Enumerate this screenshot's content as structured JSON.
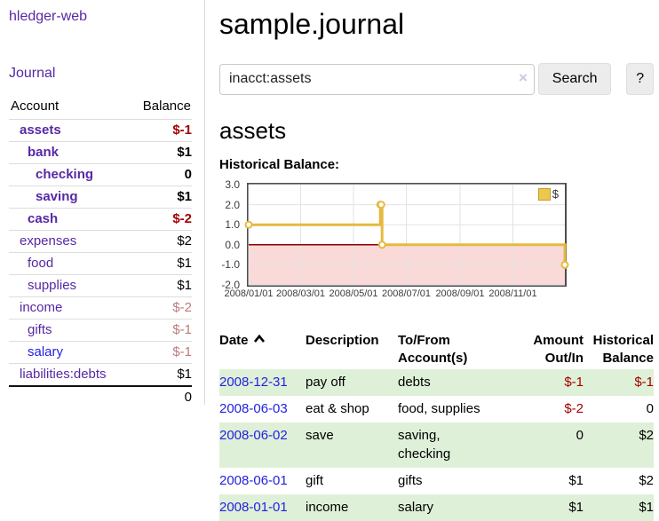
{
  "app": {
    "title": "hledger-web"
  },
  "sidebar": {
    "nav": {
      "journal_label": "Journal"
    },
    "table": {
      "account_header": "Account",
      "balance_header": "Balance",
      "total": "0"
    },
    "accounts": [
      {
        "name": "assets",
        "balance": "$-1",
        "level": 1,
        "bold": true,
        "balance_style": "negative",
        "link_style": "purple"
      },
      {
        "name": "bank",
        "balance": "$1",
        "level": 2,
        "bold": true,
        "balance_style": "normal",
        "link_style": "purple"
      },
      {
        "name": "checking",
        "balance": "0",
        "level": 3,
        "bold": true,
        "balance_style": "normal",
        "link_style": "purple"
      },
      {
        "name": "saving",
        "balance": "$1",
        "level": 3,
        "bold": true,
        "balance_style": "normal",
        "link_style": "purple"
      },
      {
        "name": "cash",
        "balance": "$-2",
        "level": 2,
        "bold": true,
        "balance_style": "negative",
        "link_style": "purple"
      },
      {
        "name": "expenses",
        "balance": "$2",
        "level": 1,
        "bold": false,
        "balance_style": "normal",
        "link_style": "purple"
      },
      {
        "name": "food",
        "balance": "$1",
        "level": 2,
        "bold": false,
        "balance_style": "normal",
        "link_style": "purple"
      },
      {
        "name": "supplies",
        "balance": "$1",
        "level": 2,
        "bold": false,
        "balance_style": "normal",
        "link_style": "purple"
      },
      {
        "name": "income",
        "balance": "$-2",
        "level": 1,
        "bold": false,
        "balance_style": "negative-faded",
        "link_style": "purple"
      },
      {
        "name": "gifts",
        "balance": "$-1",
        "level": 2,
        "bold": false,
        "balance_style": "negative-faded",
        "link_style": "purple"
      },
      {
        "name": "salary",
        "balance": "$-1",
        "level": 2,
        "bold": false,
        "balance_style": "negative-faded",
        "link_style": "blue"
      },
      {
        "name": "liabilities:debts",
        "balance": "$1",
        "level": 1,
        "bold": false,
        "balance_style": "normal",
        "link_style": "purple"
      }
    ]
  },
  "main": {
    "page_title": "sample.journal",
    "search": {
      "value": "inacct:assets",
      "clear_icon": "×",
      "button_label": "Search",
      "help_label": "?"
    },
    "account_heading": "assets",
    "chart_label": "Historical Balance:",
    "register": {
      "headers": [
        "Date",
        "Description",
        "To/From\nAccount(s)",
        "Amount\nOut/In",
        "Historical\nBalance"
      ],
      "sort": "date-ascending",
      "rows": [
        {
          "date": "2008-12-31",
          "description": "pay off",
          "accounts": "debts",
          "amount": "$-1",
          "amount_negative": true,
          "balance": "$-1",
          "balance_negative": true
        },
        {
          "date": "2008-06-03",
          "description": "eat & shop",
          "accounts": "food, supplies",
          "amount": "$-2",
          "amount_negative": true,
          "balance": "0",
          "balance_negative": false
        },
        {
          "date": "2008-06-02",
          "description": "save",
          "accounts": "saving,\nchecking",
          "amount": "0",
          "amount_negative": false,
          "balance": "$2",
          "balance_negative": false
        },
        {
          "date": "2008-06-01",
          "description": "gift",
          "accounts": "gifts",
          "amount": "$1",
          "amount_negative": false,
          "balance": "$2",
          "balance_negative": false
        },
        {
          "date": "2008-01-01",
          "description": "income",
          "accounts": "salary",
          "amount": "$1",
          "amount_negative": false,
          "balance": "$1",
          "balance_negative": false
        }
      ]
    }
  },
  "chart_data": {
    "type": "line",
    "title": "Historical Balance:",
    "style": "steps",
    "series": [
      {
        "name": "$",
        "points": [
          [
            "2008-01-01",
            1
          ],
          [
            "2008-06-01",
            2
          ],
          [
            "2008-06-02",
            2
          ],
          [
            "2008-06-03",
            0
          ],
          [
            "2008-12-31",
            -1
          ]
        ]
      }
    ],
    "x_domain": [
      "2008-01-01",
      "2008-12-31"
    ],
    "ylim": [
      -2,
      3
    ],
    "y_ticks": [
      3.0,
      2.0,
      1.0,
      0.0,
      -1.0,
      -2.0
    ],
    "x_ticks": [
      "2008/01/01",
      "2008/03/01",
      "2008/05/01",
      "2008/07/01",
      "2008/09/01",
      "2008/11/01"
    ],
    "legend": {
      "label": "$",
      "position": "top-right"
    },
    "grid": true
  },
  "colors": {
    "link_purple": "#5629a3",
    "link_blue": "#2222e0",
    "negative_strong": "#a40000",
    "negative_faded": "#bd7b7b",
    "row_green": "#dff0d8",
    "chart_line": "#e5ba3f",
    "chart_negative_fill": "#fad9d9",
    "chart_zero_line": "#8e0000",
    "chart_grid": "#e2e2e2",
    "chart_border": "#4d4d4d"
  }
}
